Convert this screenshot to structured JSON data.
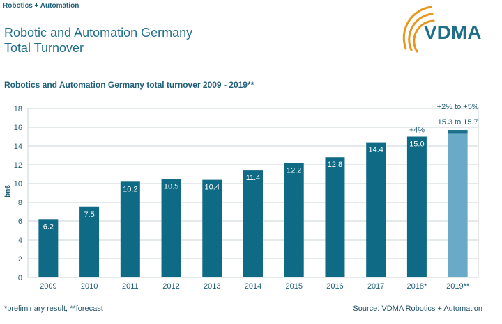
{
  "header": {
    "tag": "Robotics + Automation",
    "title_line1": "Robotic and Automation Germany",
    "title_line2": "Total Turnover",
    "logo_text": "VDMA"
  },
  "footer": {
    "note": "*preliminary result, **forecast",
    "source": "Source: VDMA Robotics + Automation"
  },
  "colors": {
    "bar": "#0f6a86",
    "forecast_bar": "#6aa9c8",
    "forecast_cap": "#1b6f8d",
    "text": "#1f5f78",
    "logo_arc": "#e8961e"
  },
  "chart_data": {
    "type": "bar",
    "title": "Robotics and Automation Germany total turnover 2009 - 2019**",
    "ylabel": "bn€",
    "ylim": [
      0,
      18
    ],
    "yticks": [
      0,
      2,
      4,
      6,
      8,
      10,
      12,
      14,
      16,
      18
    ],
    "grid": true,
    "categories": [
      "2009",
      "2010",
      "2011",
      "2012",
      "2013",
      "2014",
      "2015",
      "2016",
      "2017",
      "2018*",
      "2019**"
    ],
    "values": [
      6.2,
      7.5,
      10.2,
      10.5,
      10.4,
      11.4,
      12.2,
      12.8,
      14.4,
      15.0,
      15.7
    ],
    "labels": [
      "6.2",
      "7.5",
      "10.2",
      "10.5",
      "10.4",
      "11.4",
      "12.2",
      "12.8",
      "14.4",
      "15.0",
      "15.3 to 15.7"
    ],
    "forecast_range": [
      15.3,
      15.7
    ],
    "annotations": [
      {
        "category": "2018*",
        "text": "+4%"
      },
      {
        "category": "2019**",
        "text": "+2% to +5%"
      }
    ]
  }
}
